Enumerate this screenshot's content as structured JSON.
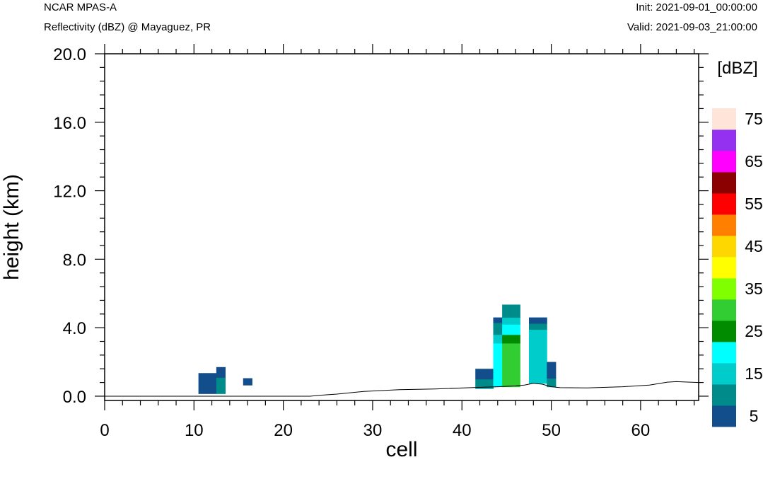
{
  "header": {
    "model": "NCAR MPAS-A",
    "field": "Reflectivity (dBZ) @ Mayaguez, PR",
    "init": "Init: 2021-09-01_00:00:00",
    "valid": "Valid: 2021-09-03_21:00:00"
  },
  "chart_data": {
    "type": "heatmap",
    "xlabel": "cell",
    "ylabel": "height (km)",
    "xlim": [
      0,
      66.5
    ],
    "ylim": [
      -0.25,
      20.0
    ],
    "xticks": [
      "0",
      "10",
      "20",
      "30",
      "40",
      "50",
      "60"
    ],
    "yticks": [
      "0.0",
      "4.0",
      "8.0",
      "12.0",
      "16.0",
      "20.0"
    ],
    "colorbar": {
      "title": "[dBZ]",
      "labels": [
        "5",
        "15",
        "25",
        "35",
        "45",
        "55",
        "65",
        "75"
      ],
      "colors": [
        "#124e8b",
        "#008b8b",
        "#00cccc",
        "#00ffff",
        "#008b00",
        "#32cd32",
        "#7fff00",
        "#ffff00",
        "#ffd700",
        "#ff7f00",
        "#ff0000",
        "#8b0000",
        "#ff00ff",
        "#9430ef",
        "#ffe4da"
      ]
    },
    "terrain": [
      [
        0,
        0
      ],
      [
        23,
        0
      ],
      [
        24,
        0.05
      ],
      [
        26,
        0.12
      ],
      [
        29,
        0.28
      ],
      [
        33,
        0.38
      ],
      [
        37,
        0.42
      ],
      [
        41,
        0.5
      ],
      [
        44,
        0.55
      ],
      [
        46,
        0.6
      ],
      [
        47,
        0.65
      ],
      [
        48,
        0.75
      ],
      [
        49,
        0.7
      ],
      [
        50,
        0.55
      ],
      [
        51,
        0.5
      ],
      [
        54,
        0.48
      ],
      [
        58,
        0.55
      ],
      [
        61,
        0.65
      ],
      [
        63,
        0.82
      ],
      [
        64,
        0.85
      ],
      [
        66.5,
        0.8
      ]
    ],
    "cells": [
      {
        "x0": 10.5,
        "x1": 12.5,
        "y0": 0.15,
        "y1": 0.45,
        "dbz": 5
      },
      {
        "x0": 10.5,
        "x1": 12.5,
        "y0": 0.45,
        "y1": 1.35,
        "dbz": 5
      },
      {
        "x0": 12.5,
        "x1": 13.5,
        "y0": 0.15,
        "y1": 1.1,
        "dbz": 10
      },
      {
        "x0": 12.5,
        "x1": 13.5,
        "y0": 1.1,
        "y1": 1.7,
        "dbz": 5
      },
      {
        "x0": 15.5,
        "x1": 16.5,
        "y0": 0.65,
        "y1": 1.05,
        "dbz": 5
      },
      {
        "x0": 41.5,
        "x1": 43.5,
        "y0": 0.45,
        "y1": 1.0,
        "dbz": 10
      },
      {
        "x0": 41.5,
        "x1": 43.5,
        "y0": 1.0,
        "y1": 1.6,
        "dbz": 5
      },
      {
        "x0": 43.5,
        "x1": 44.5,
        "y0": 0.55,
        "y1": 3.1,
        "dbz": 20
      },
      {
        "x0": 43.5,
        "x1": 44.5,
        "y0": 3.1,
        "y1": 3.6,
        "dbz": 15
      },
      {
        "x0": 43.5,
        "x1": 44.5,
        "y0": 3.6,
        "y1": 4.3,
        "dbz": 10
      },
      {
        "x0": 43.5,
        "x1": 44.5,
        "y0": 4.3,
        "y1": 4.6,
        "dbz": 5
      },
      {
        "x0": 44.5,
        "x1": 46.5,
        "y0": 0.55,
        "y1": 3.1,
        "dbz": 30
      },
      {
        "x0": 44.5,
        "x1": 46.5,
        "y0": 3.1,
        "y1": 3.6,
        "dbz": 25
      },
      {
        "x0": 44.5,
        "x1": 46.5,
        "y0": 3.6,
        "y1": 4.2,
        "dbz": 20
      },
      {
        "x0": 44.5,
        "x1": 46.5,
        "y0": 4.2,
        "y1": 4.6,
        "dbz": 15
      },
      {
        "x0": 44.5,
        "x1": 46.5,
        "y0": 4.6,
        "y1": 5.35,
        "dbz": 10
      },
      {
        "x0": 47.5,
        "x1": 49.5,
        "y0": 0.75,
        "y1": 3.9,
        "dbz": 15
      },
      {
        "x0": 47.5,
        "x1": 49.5,
        "y0": 3.9,
        "y1": 4.25,
        "dbz": 10
      },
      {
        "x0": 47.5,
        "x1": 49.5,
        "y0": 4.25,
        "y1": 4.6,
        "dbz": 5
      },
      {
        "x0": 49.5,
        "x1": 50.5,
        "y0": 0.55,
        "y1": 1.05,
        "dbz": 10
      },
      {
        "x0": 49.5,
        "x1": 50.5,
        "y0": 1.05,
        "y1": 2.0,
        "dbz": 5
      }
    ]
  }
}
